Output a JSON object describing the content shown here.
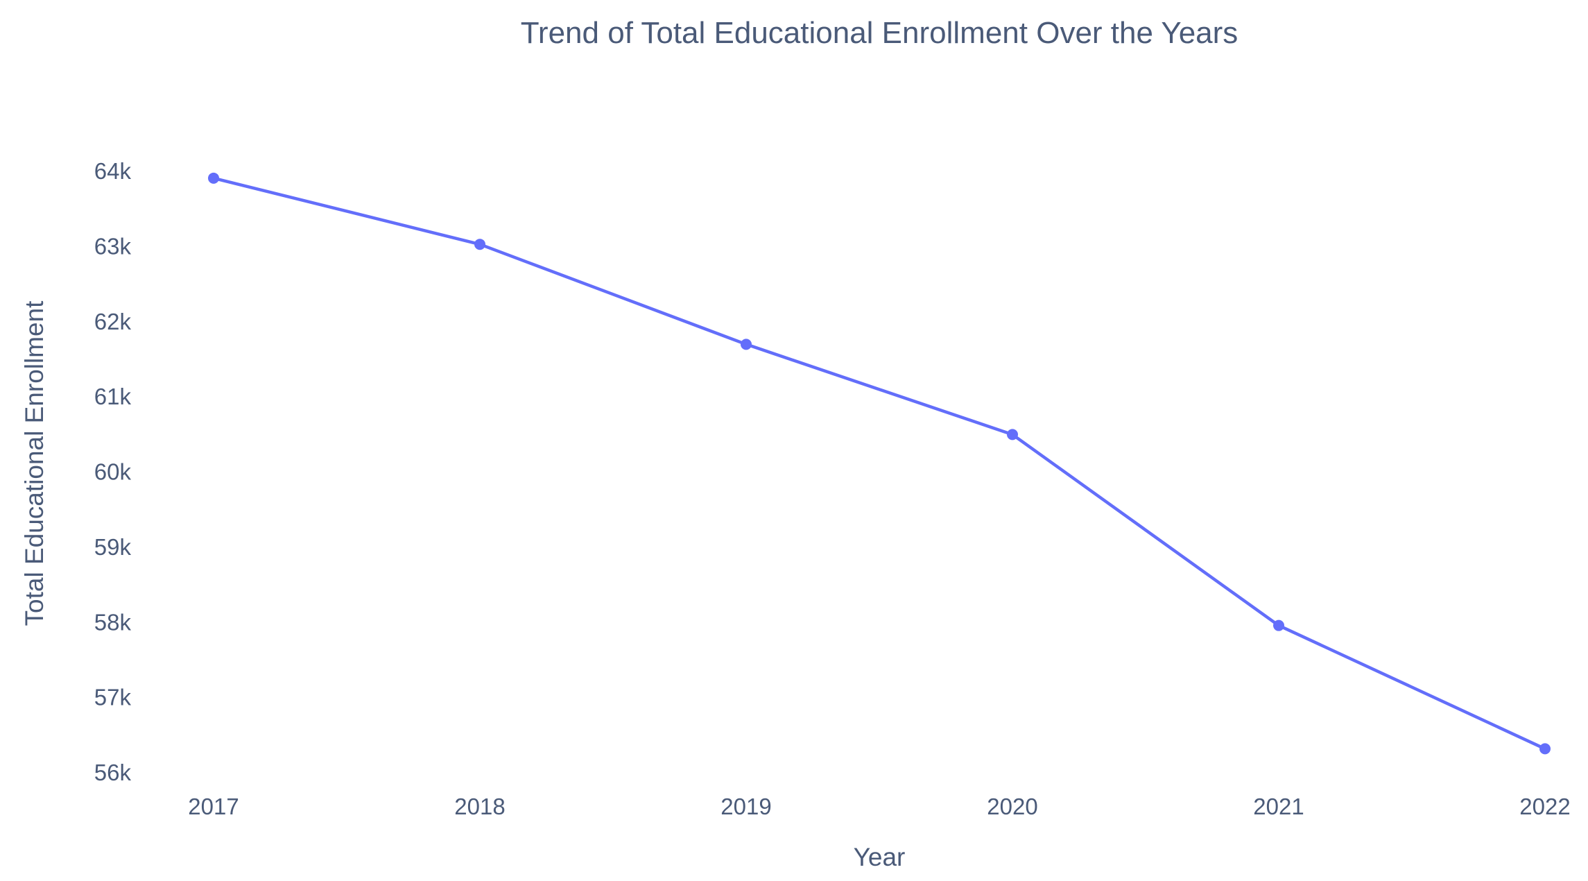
{
  "chart_data": {
    "type": "line",
    "title": "Trend of Total Educational Enrollment Over the Years",
    "xlabel": "Year",
    "ylabel": "Total Educational Enrollment",
    "categories": [
      "2017",
      "2018",
      "2019",
      "2020",
      "2021",
      "2022"
    ],
    "series": [
      {
        "values": [
          63900,
          63020,
          61690,
          60490,
          57950,
          56310
        ],
        "color": "#636efa"
      }
    ],
    "y_ticks": [
      56000,
      57000,
      58000,
      59000,
      60000,
      61000,
      62000,
      63000,
      64000
    ],
    "y_tick_labels": [
      "56k",
      "57k",
      "58k",
      "59k",
      "60k",
      "61k",
      "62k",
      "63k",
      "64k"
    ],
    "ylim": [
      56000,
      64000
    ],
    "grid": false,
    "legend": "none"
  }
}
